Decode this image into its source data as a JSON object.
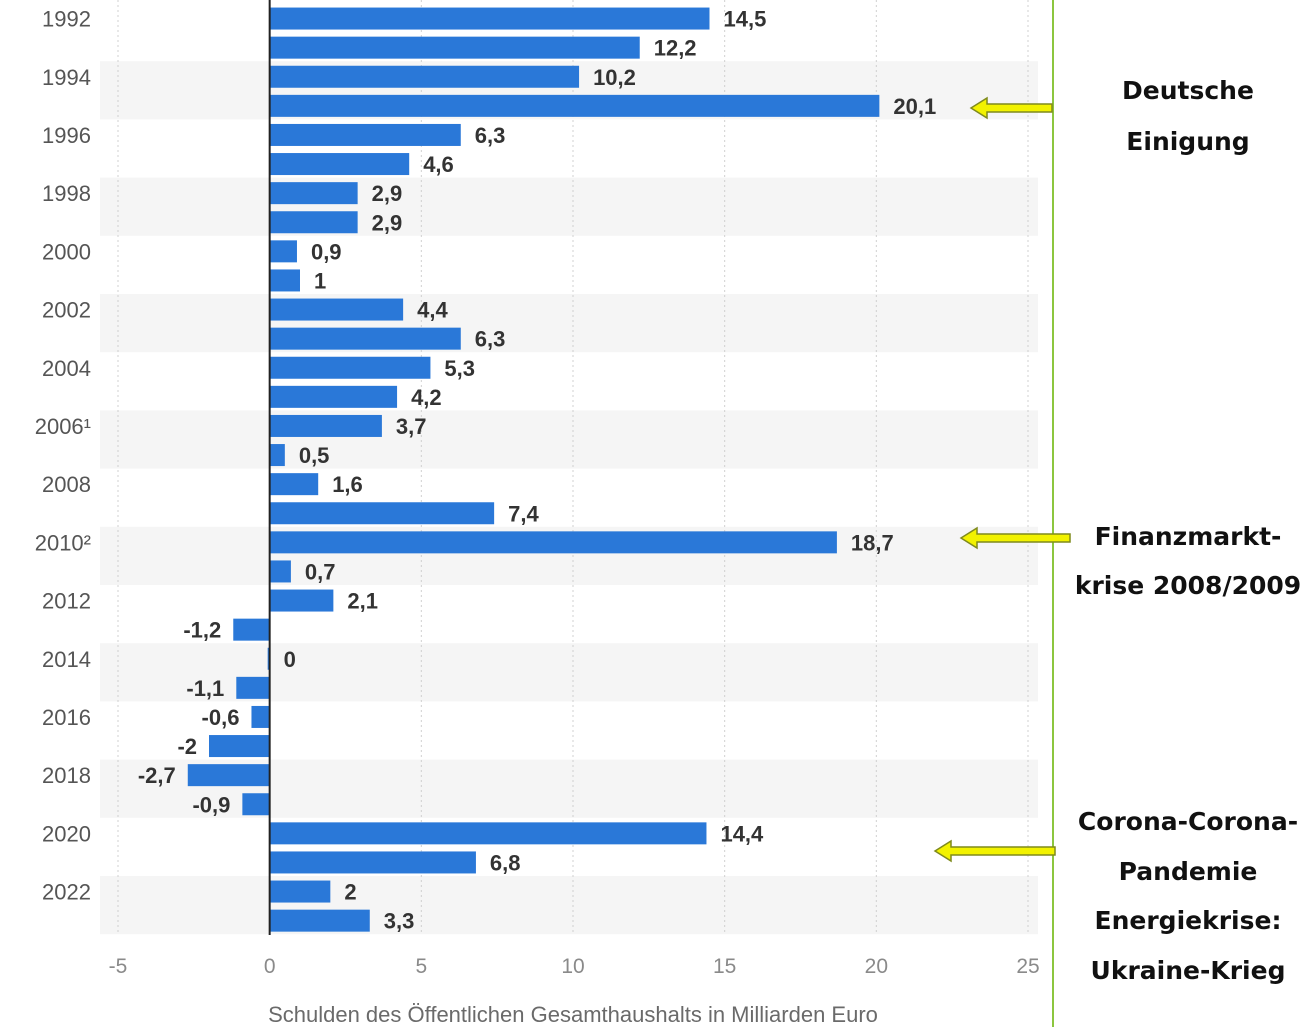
{
  "chart_data": {
    "type": "bar",
    "orientation": "horizontal",
    "categories": [
      "1992",
      "1993",
      "1994",
      "1995",
      "1996",
      "1997",
      "1998",
      "1999",
      "2000",
      "2001",
      "2002",
      "2003",
      "2004",
      "2005",
      "2006¹",
      "2007",
      "2008",
      "2009",
      "2010²",
      "2011",
      "2012",
      "2013",
      "2014",
      "2015",
      "2016",
      "2017",
      "2018",
      "2019",
      "2020",
      "2021",
      "2022",
      "2023"
    ],
    "shown_category_labels": [
      "1992",
      "1994",
      "1996",
      "1998",
      "2000",
      "2002",
      "2004",
      "2006¹",
      "2008",
      "2010²",
      "2012",
      "2014",
      "2016",
      "2018",
      "2020",
      "2022"
    ],
    "values": [
      14.5,
      12.2,
      10.2,
      20.1,
      6.3,
      4.6,
      2.9,
      2.9,
      0.9,
      1,
      4.4,
      6.3,
      5.3,
      4.2,
      3.7,
      0.5,
      1.6,
      7.4,
      18.7,
      0.7,
      2.1,
      -1.2,
      0,
      -1.1,
      -0.6,
      -2,
      -2.7,
      -0.9,
      14.4,
      6.8,
      2,
      3.3
    ],
    "value_labels": [
      "14,5",
      "12,2",
      "10,2",
      "20,1",
      "6,3",
      "4,6",
      "2,9",
      "2,9",
      "0,9",
      "1",
      "4,4",
      "6,3",
      "5,3",
      "4,2",
      "3,7",
      "0,5",
      "1,6",
      "7,4",
      "18,7",
      "0,7",
      "2,1",
      "-1,2",
      "0",
      "-1,1",
      "-0,6",
      "-2",
      "-2,7",
      "-0,9",
      "14,4",
      "6,8",
      "2",
      "3,3"
    ],
    "xlabel": "Schulden des Öffentlichen Gesamthaushalts in Milliarden Euro",
    "xlim": [
      -5,
      25
    ],
    "xticks": [
      "-5",
      "0",
      "5",
      "10",
      "15",
      "20",
      "25"
    ],
    "grid": "vertical dotted",
    "bar_color": "#2a78d8",
    "annotations": [
      {
        "lines": [
          "Deutsche",
          "Einigung"
        ],
        "points_to": "1995"
      },
      {
        "lines": [
          "Finanzmarkt-",
          "krise 2008/2009"
        ],
        "points_to": "2010²"
      },
      {
        "lines": [
          "Corona-Corona-",
          "Pandemie",
          "Energiekrise:",
          "Ukraine-Krieg"
        ],
        "points_to": "2020"
      }
    ],
    "arrow_color": "#f2f200",
    "divider_color": "#8cc63f"
  }
}
